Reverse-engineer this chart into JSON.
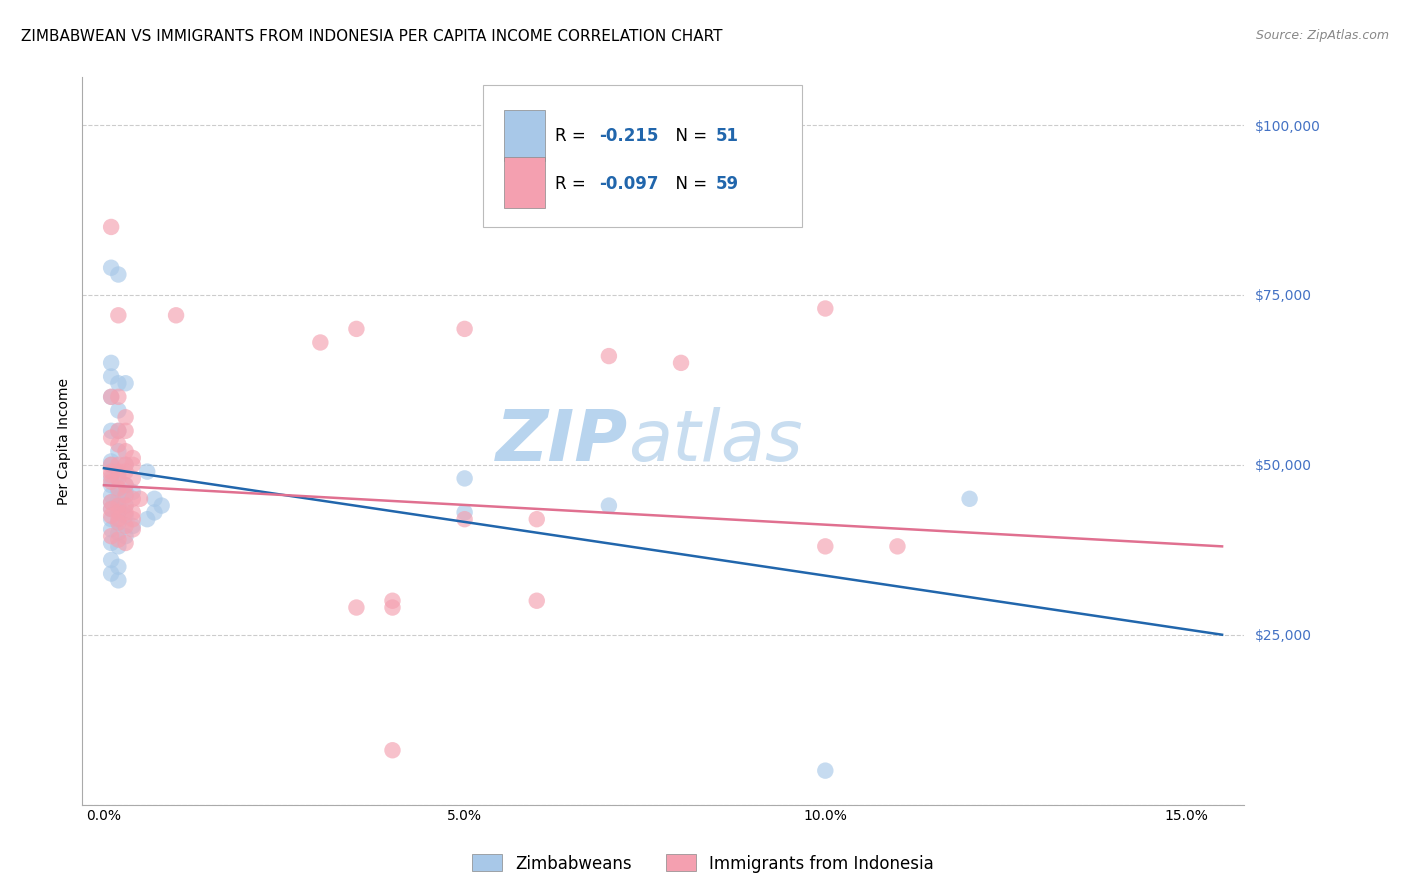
{
  "title": "ZIMBABWEAN VS IMMIGRANTS FROM INDONESIA PER CAPITA INCOME CORRELATION CHART",
  "source": "Source: ZipAtlas.com",
  "ylabel": "Per Capita Income",
  "xlabel_ticks": [
    "0.0%",
    "5.0%",
    "10.0%",
    "15.0%"
  ],
  "xlabel_vals": [
    0.0,
    0.05,
    0.1,
    0.15
  ],
  "ytick_vals": [
    0,
    25000,
    50000,
    75000,
    100000
  ],
  "ytick_labels": [
    "",
    "$25,000",
    "$50,000",
    "$75,000",
    "$100,000"
  ],
  "xmin": -0.003,
  "xmax": 0.158,
  "ymin": 0,
  "ymax": 107000,
  "blue_color": "#a8c8e8",
  "pink_color": "#f4a0b0",
  "blue_line_color": "#2166ac",
  "pink_line_color": "#e07090",
  "watermark_zip": "ZIP",
  "watermark_atlas": "atlas",
  "scatter_blue": [
    [
      0.001,
      79000
    ],
    [
      0.002,
      78000
    ],
    [
      0.001,
      65000
    ],
    [
      0.002,
      62000
    ],
    [
      0.001,
      60000
    ],
    [
      0.002,
      58000
    ],
    [
      0.001,
      55000
    ],
    [
      0.002,
      55000
    ],
    [
      0.001,
      63000
    ],
    [
      0.003,
      62000
    ],
    [
      0.002,
      52000
    ],
    [
      0.001,
      50500
    ],
    [
      0.001,
      50000
    ],
    [
      0.003,
      50000
    ],
    [
      0.002,
      48500
    ],
    [
      0.001,
      48000
    ],
    [
      0.003,
      47000
    ],
    [
      0.001,
      47000
    ],
    [
      0.002,
      46000
    ],
    [
      0.003,
      46000
    ],
    [
      0.004,
      46000
    ],
    [
      0.001,
      45500
    ],
    [
      0.002,
      45000
    ],
    [
      0.001,
      44500
    ],
    [
      0.002,
      44000
    ],
    [
      0.003,
      44000
    ],
    [
      0.001,
      43500
    ],
    [
      0.002,
      43000
    ],
    [
      0.003,
      42500
    ],
    [
      0.001,
      42000
    ],
    [
      0.002,
      41500
    ],
    [
      0.004,
      41000
    ],
    [
      0.001,
      40500
    ],
    [
      0.002,
      40000
    ],
    [
      0.003,
      39500
    ],
    [
      0.001,
      38500
    ],
    [
      0.002,
      38000
    ],
    [
      0.006,
      49000
    ],
    [
      0.007,
      45000
    ],
    [
      0.008,
      44000
    ],
    [
      0.006,
      42000
    ],
    [
      0.007,
      43000
    ],
    [
      0.05,
      48000
    ],
    [
      0.05,
      43000
    ],
    [
      0.07,
      44000
    ],
    [
      0.12,
      45000
    ],
    [
      0.001,
      36000
    ],
    [
      0.002,
      35000
    ],
    [
      0.001,
      34000
    ],
    [
      0.002,
      33000
    ],
    [
      0.1,
      5000
    ]
  ],
  "scatter_pink": [
    [
      0.001,
      85000
    ],
    [
      0.002,
      72000
    ],
    [
      0.01,
      72000
    ],
    [
      0.035,
      70000
    ],
    [
      0.001,
      60000
    ],
    [
      0.002,
      60000
    ],
    [
      0.003,
      57000
    ],
    [
      0.002,
      55000
    ],
    [
      0.003,
      55000
    ],
    [
      0.001,
      54000
    ],
    [
      0.002,
      53000
    ],
    [
      0.003,
      52000
    ],
    [
      0.004,
      51000
    ],
    [
      0.001,
      50000
    ],
    [
      0.002,
      50000
    ],
    [
      0.003,
      50000
    ],
    [
      0.004,
      50000
    ],
    [
      0.001,
      49000
    ],
    [
      0.002,
      49000
    ],
    [
      0.003,
      49000
    ],
    [
      0.001,
      48500
    ],
    [
      0.002,
      48000
    ],
    [
      0.004,
      48000
    ],
    [
      0.001,
      47500
    ],
    [
      0.003,
      47000
    ],
    [
      0.002,
      46500
    ],
    [
      0.003,
      45500
    ],
    [
      0.004,
      45000
    ],
    [
      0.005,
      45000
    ],
    [
      0.001,
      44500
    ],
    [
      0.002,
      44000
    ],
    [
      0.003,
      44000
    ],
    [
      0.001,
      43500
    ],
    [
      0.002,
      43000
    ],
    [
      0.003,
      43000
    ],
    [
      0.004,
      43000
    ],
    [
      0.001,
      42500
    ],
    [
      0.002,
      42000
    ],
    [
      0.004,
      42000
    ],
    [
      0.002,
      41500
    ],
    [
      0.003,
      41000
    ],
    [
      0.004,
      40500
    ],
    [
      0.001,
      39500
    ],
    [
      0.002,
      39000
    ],
    [
      0.003,
      38500
    ],
    [
      0.05,
      70000
    ],
    [
      0.07,
      66000
    ],
    [
      0.03,
      68000
    ],
    [
      0.08,
      65000
    ],
    [
      0.05,
      42000
    ],
    [
      0.06,
      42000
    ],
    [
      0.1,
      38000
    ],
    [
      0.11,
      38000
    ],
    [
      0.1,
      73000
    ],
    [
      0.04,
      30000
    ],
    [
      0.06,
      30000
    ],
    [
      0.035,
      29000
    ],
    [
      0.04,
      29000
    ],
    [
      0.04,
      8000
    ]
  ],
  "blue_trend_x": [
    0.0,
    0.155
  ],
  "blue_trend_y": [
    49500,
    25000
  ],
  "pink_trend_x": [
    0.0,
    0.155
  ],
  "pink_trend_y": [
    47000,
    38000
  ],
  "title_fontsize": 11,
  "source_fontsize": 9,
  "axis_label_fontsize": 10,
  "tick_fontsize": 10,
  "legend_fontsize": 12,
  "watermark_fontsize_zip": 52,
  "watermark_fontsize_atlas": 52,
  "watermark_color": "#cfe0f0",
  "tick_color": "#4472c4",
  "background_color": "#ffffff",
  "grid_color": "#cccccc",
  "spine_color": "#aaaaaa"
}
